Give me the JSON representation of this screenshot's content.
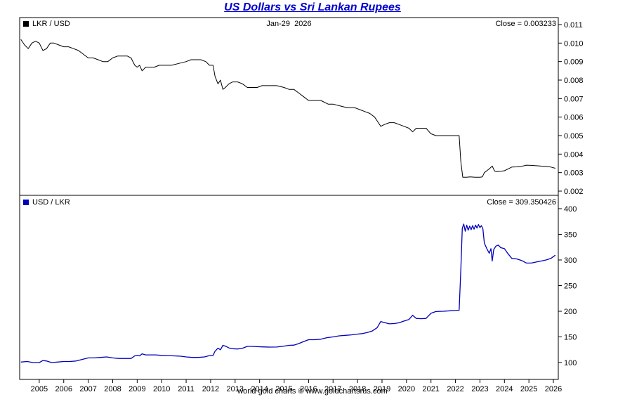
{
  "title": "US Dollars vs Sri Lankan Rupees",
  "footer": "world gold charts © www.goldchartsrus.com",
  "top_panel": {
    "legend": "LKR / USD",
    "date_label": "Jan-29  2026",
    "close_label": "Close = 0.003233",
    "color": "#000000"
  },
  "bottom_panel": {
    "legend": "USD / LKR",
    "close_label": "Close = 309.350426",
    "color": "#0000bb"
  },
  "x_axis": {
    "range": [
      2004.2,
      2026.2
    ],
    "ticks": [
      2005,
      2006,
      2007,
      2008,
      2009,
      2010,
      2011,
      2012,
      2013,
      2014,
      2015,
      2016,
      2017,
      2018,
      2019,
      2020,
      2021,
      2022,
      2023,
      2024,
      2025,
      2026
    ]
  },
  "chart_data": [
    {
      "type": "line",
      "name": "LKR / USD",
      "title": "US Dollars vs Sri Lankan Rupees",
      "color": "#000000",
      "close_value": 0.003233,
      "legend_position": "top-left",
      "grid": false,
      "ylim": [
        0.002,
        0.011
      ],
      "y_ticks": [
        0.011,
        0.01,
        0.009,
        0.008,
        0.007,
        0.006,
        0.005,
        0.004,
        0.003,
        0.002
      ],
      "y_tick_labels": [
        "0.011",
        "0.010",
        "0.009",
        "0.008",
        "0.007",
        "0.006",
        "0.005",
        "0.004",
        "0.003",
        "0.002"
      ],
      "x": [
        2004.25,
        2004.4,
        2004.55,
        2004.7,
        2004.85,
        2005.0,
        2005.15,
        2005.3,
        2005.45,
        2005.6,
        2005.8,
        2006.0,
        2006.2,
        2006.4,
        2006.6,
        2006.8,
        2007.0,
        2007.2,
        2007.4,
        2007.6,
        2007.8,
        2008.0,
        2008.2,
        2008.4,
        2008.6,
        2008.75,
        2008.9,
        2009.0,
        2009.1,
        2009.2,
        2009.35,
        2009.5,
        2009.7,
        2009.9,
        2010.1,
        2010.4,
        2010.7,
        2011.0,
        2011.2,
        2011.4,
        2011.6,
        2011.8,
        2011.95,
        2012.1,
        2012.18,
        2012.3,
        2012.4,
        2012.5,
        2012.6,
        2012.75,
        2012.9,
        2013.1,
        2013.3,
        2013.5,
        2013.7,
        2013.9,
        2014.1,
        2014.4,
        2014.7,
        2015.0,
        2015.2,
        2015.4,
        2015.6,
        2015.8,
        2016.0,
        2016.2,
        2016.5,
        2016.8,
        2017.0,
        2017.3,
        2017.6,
        2017.9,
        2018.1,
        2018.3,
        2018.5,
        2018.7,
        2018.85,
        2018.95,
        2019.1,
        2019.3,
        2019.5,
        2019.7,
        2019.9,
        2020.1,
        2020.25,
        2020.4,
        2020.6,
        2020.8,
        2021.0,
        2021.2,
        2021.5,
        2021.8,
        2022.0,
        2022.15,
        2022.22,
        2022.3,
        2022.45,
        2022.6,
        2022.8,
        2023.0,
        2023.1,
        2023.18,
        2023.28,
        2023.38,
        2023.5,
        2023.6,
        2023.7,
        2023.85,
        2024.0,
        2024.15,
        2024.3,
        2024.5,
        2024.7,
        2024.9,
        2025.1,
        2025.3,
        2025.5,
        2025.7,
        2025.9,
        2026.08
      ],
      "y": [
        0.0102,
        0.0099,
        0.0097,
        0.01,
        0.0101,
        0.01,
        0.0096,
        0.0097,
        0.01,
        0.01,
        0.0099,
        0.0098,
        0.0098,
        0.0097,
        0.0096,
        0.0094,
        0.0092,
        0.0092,
        0.0091,
        0.009,
        0.009,
        0.0092,
        0.0093,
        0.0093,
        0.0093,
        0.0092,
        0.0088,
        0.0087,
        0.0088,
        0.0085,
        0.0087,
        0.0087,
        0.0087,
        0.0088,
        0.0088,
        0.0088,
        0.0089,
        0.009,
        0.0091,
        0.0091,
        0.0091,
        0.009,
        0.0088,
        0.0088,
        0.0082,
        0.0078,
        0.008,
        0.0075,
        0.0076,
        0.0078,
        0.0079,
        0.0079,
        0.0078,
        0.0076,
        0.0076,
        0.0076,
        0.0077,
        0.0077,
        0.0077,
        0.0076,
        0.0075,
        0.0075,
        0.0073,
        0.0071,
        0.0069,
        0.0069,
        0.0069,
        0.0067,
        0.0067,
        0.0066,
        0.0065,
        0.0065,
        0.0064,
        0.0063,
        0.0062,
        0.006,
        0.0057,
        0.0055,
        0.0056,
        0.0057,
        0.0057,
        0.0056,
        0.0055,
        0.0054,
        0.0052,
        0.0054,
        0.0054,
        0.0054,
        0.0051,
        0.005,
        0.005,
        0.005,
        0.005,
        0.005,
        0.0036,
        0.00275,
        0.00275,
        0.00277,
        0.00275,
        0.00275,
        0.00277,
        0.003,
        0.0031,
        0.0032,
        0.00335,
        0.00308,
        0.00305,
        0.00307,
        0.0031,
        0.0032,
        0.0033,
        0.00331,
        0.00334,
        0.0034,
        0.00339,
        0.00337,
        0.00335,
        0.00334,
        0.0033,
        0.003233
      ]
    },
    {
      "type": "line",
      "name": "USD / LKR",
      "title": "US Dollars vs Sri Lankan Rupees",
      "color": "#0000bb",
      "close_value": 309.350426,
      "legend_position": "top-left",
      "grid": false,
      "ylim": [
        100,
        400
      ],
      "y_ticks": [
        400,
        350,
        300,
        250,
        200,
        150,
        100
      ],
      "y_tick_labels": [
        "400",
        "350",
        "300",
        "250",
        "200",
        "150",
        "100"
      ],
      "x": [
        2004.25,
        2004.5,
        2004.75,
        2005.0,
        2005.15,
        2005.3,
        2005.5,
        2005.75,
        2006.0,
        2006.25,
        2006.5,
        2006.75,
        2007.0,
        2007.25,
        2007.5,
        2007.75,
        2008.0,
        2008.25,
        2008.5,
        2008.75,
        2008.9,
        2009.0,
        2009.1,
        2009.2,
        2009.35,
        2009.5,
        2009.75,
        2010.0,
        2010.25,
        2010.5,
        2010.75,
        2011.0,
        2011.25,
        2011.5,
        2011.75,
        2011.95,
        2012.1,
        2012.18,
        2012.3,
        2012.4,
        2012.5,
        2012.6,
        2012.75,
        2012.9,
        2013.1,
        2013.3,
        2013.5,
        2013.7,
        2013.9,
        2014.1,
        2014.4,
        2014.7,
        2015.0,
        2015.2,
        2015.4,
        2015.6,
        2015.8,
        2016.0,
        2016.25,
        2016.5,
        2016.75,
        2017.0,
        2017.25,
        2017.5,
        2017.75,
        2018.0,
        2018.2,
        2018.4,
        2018.6,
        2018.8,
        2018.95,
        2019.1,
        2019.3,
        2019.5,
        2019.7,
        2019.9,
        2020.1,
        2020.25,
        2020.4,
        2020.6,
        2020.8,
        2021.0,
        2021.2,
        2021.5,
        2021.8,
        2022.0,
        2022.15,
        2022.22,
        2022.28,
        2022.34,
        2022.4,
        2022.46,
        2022.52,
        2022.58,
        2022.64,
        2022.7,
        2022.76,
        2022.82,
        2022.88,
        2022.94,
        2023.0,
        2023.06,
        2023.12,
        2023.18,
        2023.28,
        2023.38,
        2023.45,
        2023.5,
        2023.56,
        2023.65,
        2023.75,
        2023.85,
        2024.0,
        2024.15,
        2024.3,
        2024.5,
        2024.7,
        2024.9,
        2025.1,
        2025.3,
        2025.5,
        2025.7,
        2025.9,
        2026.08
      ],
      "y": [
        101,
        102,
        100,
        100,
        104,
        103,
        100,
        101,
        102,
        102,
        103,
        106,
        109,
        109,
        110,
        111,
        109,
        108,
        108,
        108,
        113,
        114,
        113,
        117,
        115,
        115,
        115,
        114,
        113.5,
        113,
        112.5,
        111,
        110,
        110,
        111,
        113.5,
        114,
        122,
        128,
        125,
        133.5,
        132,
        128.5,
        127,
        126.5,
        128,
        131.5,
        131.5,
        131,
        130.5,
        130.2,
        130.3,
        132,
        133.5,
        134,
        137,
        141,
        144.5,
        144.5,
        145.5,
        148.5,
        150,
        152,
        153,
        154,
        155.5,
        156.5,
        158.5,
        161.5,
        168,
        180,
        178,
        175.5,
        176,
        177.5,
        181,
        184,
        192,
        186,
        185.5,
        186,
        196,
        199.5,
        200,
        201,
        201.5,
        202,
        280,
        362,
        370,
        356,
        368,
        358,
        366,
        359,
        367,
        360,
        368,
        362,
        369,
        363,
        367,
        361,
        333,
        322,
        313,
        322,
        298,
        320,
        327,
        329,
        324,
        322,
        312,
        303,
        302,
        299,
        294,
        294,
        296,
        298,
        300,
        303,
        309.35
      ]
    }
  ]
}
